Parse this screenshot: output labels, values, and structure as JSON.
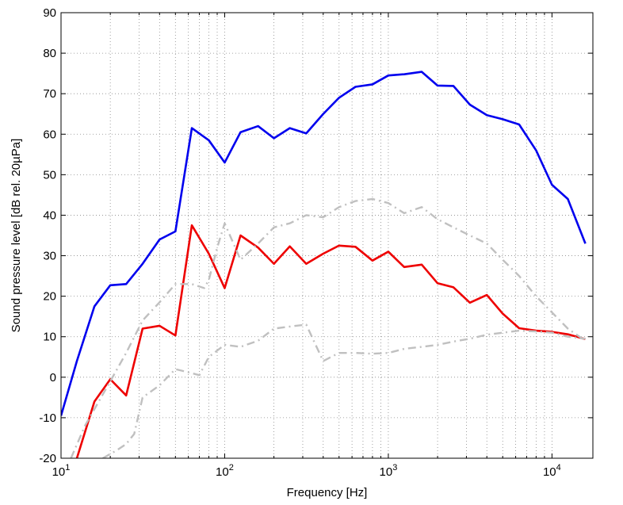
{
  "chart_data": {
    "type": "line",
    "xscale": "log",
    "xlim": [
      10,
      17782
    ],
    "ylim": [
      -20,
      90
    ],
    "grid": true,
    "xlabel": "Frequency [Hz]",
    "ylabel": "Sound pressure level [dB rel. 20µPa]",
    "yticks": [
      "-20",
      "-10",
      "0",
      "10",
      "20",
      "30",
      "40",
      "50",
      "60",
      "70",
      "80",
      "90"
    ],
    "xticks": [
      {
        "value": 10,
        "base": "10",
        "exp": "1"
      },
      {
        "value": 100,
        "base": "10",
        "exp": "2"
      },
      {
        "value": 1000,
        "base": "10",
        "exp": "3"
      },
      {
        "value": 10000,
        "base": "10",
        "exp": "4"
      }
    ],
    "series": [
      {
        "color": "#0000ee",
        "style": "solid",
        "x": [
          10,
          12.5,
          16,
          20,
          25,
          31.5,
          40,
          50,
          63,
          80,
          100,
          125,
          160,
          200,
          250,
          315,
          400,
          500,
          630,
          800,
          1000,
          1250,
          1600,
          2000,
          2500,
          3150,
          4000,
          5000,
          6300,
          8000,
          10000,
          12500,
          16000
        ],
        "y": [
          -9.5,
          4,
          17.5,
          22.7,
          23,
          28,
          34,
          36,
          61.5,
          58.5,
          53,
          60.5,
          62,
          59,
          61.5,
          60.2,
          65,
          69,
          71.7,
          72.3,
          74.5,
          74.8,
          75.4,
          72,
          71.9,
          67.3,
          64.7,
          63.7,
          62.4,
          56,
          47.5,
          44,
          33
        ]
      },
      {
        "color": "#ee0000",
        "style": "solid",
        "x": [
          12.5,
          16,
          20,
          25,
          31.5,
          40,
          50,
          63,
          80,
          100,
          125,
          160,
          200,
          250,
          315,
          400,
          500,
          630,
          800,
          1000,
          1250,
          1600,
          2000,
          2500,
          3150,
          4000,
          5000,
          6300,
          8000,
          10000,
          12500,
          16000
        ],
        "y": [
          -20,
          -6,
          -0.5,
          -4.5,
          12,
          12.7,
          10.3,
          37.5,
          30.5,
          22,
          35,
          32,
          28,
          32.3,
          28,
          30.5,
          32.5,
          32.2,
          28.8,
          31,
          27.2,
          27.8,
          23.2,
          22.2,
          18.4,
          20.3,
          15.7,
          12.1,
          11.5,
          11.2,
          10.6,
          9.4
        ]
      },
      {
        "color": "#c0c0c0",
        "style": "dashdot",
        "x": [
          11.5,
          14,
          17,
          20,
          25,
          31.5,
          40,
          50,
          63,
          75,
          80,
          90,
          100,
          125,
          160,
          200,
          250,
          315,
          400,
          500,
          630,
          800,
          1000,
          1250,
          1600,
          2000,
          2500,
          3150,
          4000,
          5000,
          6300,
          8000,
          10000,
          12500,
          16000
        ],
        "y": [
          -20,
          -12,
          -6,
          -1,
          6,
          14,
          18.5,
          23,
          23,
          22,
          24,
          32,
          38,
          29,
          33,
          37,
          38,
          40,
          39.5,
          42,
          43.5,
          44,
          43,
          40.5,
          42,
          39,
          37,
          35,
          33,
          29,
          25,
          20,
          16,
          12,
          9
        ]
      },
      {
        "color": "#c0c0c0",
        "style": "dashdot",
        "x": [
          18,
          22,
          25,
          28,
          31.5,
          40,
          50,
          63,
          70,
          80,
          100,
          125,
          160,
          200,
          250,
          315,
          350,
          400,
          500,
          630,
          800,
          1000,
          1250,
          1600,
          2000,
          2500,
          3150,
          4000,
          5000,
          6300,
          8000,
          10000,
          12500,
          16000
        ],
        "y": [
          -20,
          -18,
          -16.5,
          -14,
          -5,
          -2,
          2,
          1,
          0.5,
          5,
          8,
          7.5,
          9,
          12,
          12.5,
          13,
          9,
          4,
          6,
          6,
          5.8,
          6,
          7,
          7.5,
          8,
          8.8,
          9.5,
          10.5,
          11,
          11.5,
          11.3,
          11,
          10,
          9.5
        ]
      }
    ]
  }
}
